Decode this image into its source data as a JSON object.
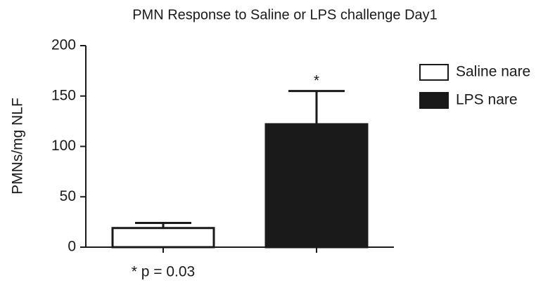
{
  "chart_data": {
    "type": "bar",
    "title": "PMN Response to Saline or LPS challenge Day1",
    "y_label": "PMNs/mg NLF",
    "categories": [
      null,
      null
    ],
    "series": [
      {
        "name": "Saline nare",
        "color": "#ffffff",
        "values": [
          19,
          null
        ],
        "errors": [
          5,
          null
        ]
      },
      {
        "name": "LPS nare",
        "color": "#1a1a1a",
        "values": [
          null,
          122
        ],
        "errors": [
          null,
          33
        ]
      }
    ],
    "ylim": [
      0,
      200
    ],
    "yticks": [
      0,
      50,
      100,
      150,
      200
    ],
    "annotations": [
      "*",
      "* p = 0.03"
    ],
    "legend": "right"
  }
}
